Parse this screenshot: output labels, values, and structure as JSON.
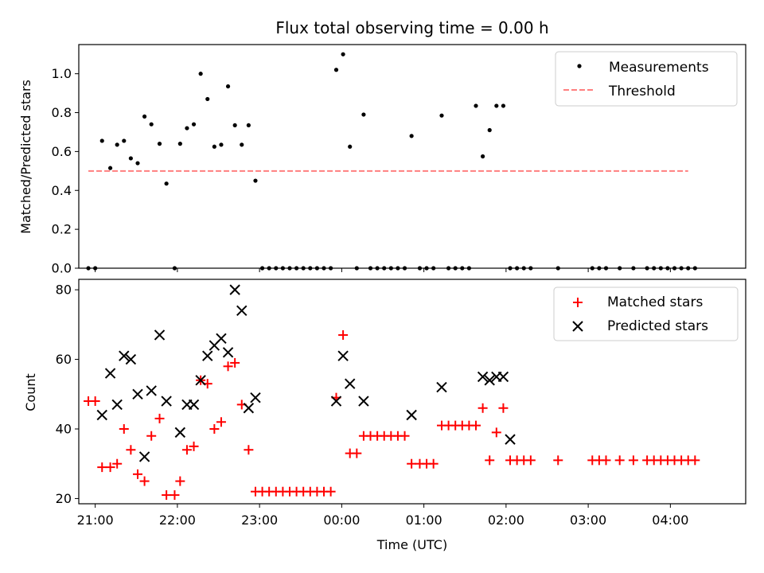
{
  "chart_data": [
    {
      "type": "scatter",
      "title": "Flux total observing time = 0.00 h",
      "xlabel": "",
      "ylabel": "Matched/Predicted stars",
      "xlim": [
        "20:48",
        "04:55"
      ],
      "ylim": [
        0,
        1.15
      ],
      "yticks": [
        "0.0",
        "0.2",
        "0.4",
        "0.6",
        "0.8",
        "1.0"
      ],
      "ytick_values": [
        0,
        0.2,
        0.4,
        0.6,
        0.8,
        1.0
      ],
      "legend_position": "top-right",
      "series": [
        {
          "name": "Measurements",
          "marker": "dot",
          "color": "#000000",
          "x": [
            "20:55",
            "21:00",
            "21:05",
            "21:11",
            "21:16",
            "21:21",
            "21:26",
            "21:31",
            "21:36",
            "21:41",
            "21:47",
            "21:52",
            "21:58",
            "22:02",
            "22:07",
            "22:12",
            "22:17",
            "22:22",
            "22:27",
            "22:32",
            "22:37",
            "22:42",
            "22:47",
            "22:52",
            "22:57",
            "23:02",
            "23:07",
            "23:12",
            "23:17",
            "23:22",
            "23:27",
            "23:32",
            "23:37",
            "23:42",
            "23:47",
            "23:52",
            "23:56",
            "00:01",
            "00:06",
            "00:11",
            "00:16",
            "00:21",
            "00:26",
            "00:31",
            "00:36",
            "00:41",
            "00:46",
            "00:51",
            "00:57",
            "01:02",
            "01:07",
            "01:13",
            "01:18",
            "01:23",
            "01:28",
            "01:33",
            "01:38",
            "01:43",
            "01:48",
            "01:53",
            "01:58",
            "02:03",
            "02:08",
            "02:13",
            "02:18",
            "02:38",
            "03:03",
            "03:08",
            "03:13",
            "03:23",
            "03:33",
            "03:43",
            "03:48",
            "03:53",
            "03:58",
            "04:03",
            "04:08",
            "04:13",
            "04:18"
          ],
          "y": [
            0,
            0,
            0.655,
            0.515,
            0.635,
            0.655,
            0.565,
            0.54,
            0.78,
            0.74,
            0.64,
            0.435,
            0,
            0.64,
            0.72,
            0.74,
            1.0,
            0.87,
            0.625,
            0.635,
            0.935,
            0.735,
            0.635,
            0.735,
            0.45,
            0,
            0,
            0,
            0,
            0,
            0,
            0,
            0,
            0,
            0,
            0,
            1.02,
            1.1,
            0.625,
            0,
            0.79,
            0,
            0,
            0,
            0,
            0,
            0,
            0.68,
            0,
            0,
            0,
            0.785,
            0,
            0,
            0,
            0,
            0.835,
            0.575,
            0.71,
            0.835,
            0.835,
            0,
            0,
            0,
            0,
            0,
            0,
            0,
            0,
            0,
            0,
            0,
            0,
            0,
            0,
            0,
            0,
            0,
            0
          ]
        },
        {
          "name": "Threshold",
          "line_style": "dashed",
          "color": "#ff7f7f",
          "x": [
            "20:55",
            "04:13"
          ],
          "y": [
            0.5,
            0.5
          ]
        }
      ]
    },
    {
      "type": "scatter",
      "title": "",
      "xlabel": "Time (UTC)",
      "ylabel": "Count",
      "xlim": [
        "20:48",
        "04:55"
      ],
      "ylim": [
        18.5,
        83
      ],
      "xticks": [
        "21:00",
        "22:00",
        "23:00",
        "00:00",
        "01:00",
        "02:00",
        "03:00",
        "04:00"
      ],
      "yticks": [
        "20",
        "40",
        "60",
        "80"
      ],
      "ytick_values": [
        20,
        40,
        60,
        80
      ],
      "legend_position": "top-right",
      "series": [
        {
          "name": "Matched stars",
          "marker": "plus",
          "color": "#ff0000",
          "x": [
            "20:55",
            "21:00",
            "21:05",
            "21:11",
            "21:16",
            "21:21",
            "21:26",
            "21:31",
            "21:36",
            "21:41",
            "21:47",
            "21:52",
            "21:58",
            "22:02",
            "22:07",
            "22:12",
            "22:17",
            "22:22",
            "22:27",
            "22:32",
            "22:37",
            "22:42",
            "22:47",
            "22:52",
            "22:57",
            "23:02",
            "23:07",
            "23:12",
            "23:17",
            "23:22",
            "23:27",
            "23:32",
            "23:37",
            "23:42",
            "23:47",
            "23:52",
            "23:56",
            "00:01",
            "00:06",
            "00:11",
            "00:16",
            "00:21",
            "00:26",
            "00:31",
            "00:36",
            "00:41",
            "00:46",
            "00:51",
            "00:57",
            "01:02",
            "01:07",
            "01:13",
            "01:18",
            "01:23",
            "01:28",
            "01:33",
            "01:38",
            "01:43",
            "01:48",
            "01:53",
            "01:58",
            "02:03",
            "02:08",
            "02:13",
            "02:18",
            "02:38",
            "03:03",
            "03:08",
            "03:13",
            "03:23",
            "03:33",
            "03:43",
            "03:48",
            "03:53",
            "03:58",
            "04:03",
            "04:08",
            "04:13",
            "04:18"
          ],
          "y": [
            48,
            48,
            29,
            29,
            30,
            40,
            34,
            27,
            25,
            38,
            43,
            21,
            21,
            25,
            34,
            35,
            54,
            53,
            40,
            42,
            58,
            59,
            47,
            34,
            22,
            22,
            22,
            22,
            22,
            22,
            22,
            22,
            22,
            22,
            22,
            22,
            49,
            67,
            33,
            33,
            38,
            38,
            38,
            38,
            38,
            38,
            38,
            30,
            30,
            30,
            30,
            41,
            41,
            41,
            41,
            41,
            41,
            46,
            31,
            39,
            46,
            31,
            31,
            31,
            31,
            31,
            31,
            31,
            31,
            31,
            31,
            31,
            31,
            31,
            31,
            31,
            31,
            31,
            31
          ]
        },
        {
          "name": "Predicted stars",
          "marker": "x",
          "color": "#000000",
          "x": [
            "21:05",
            "21:11",
            "21:16",
            "21:21",
            "21:26",
            "21:31",
            "21:36",
            "21:41",
            "21:47",
            "21:52",
            "22:02",
            "22:07",
            "22:12",
            "22:17",
            "22:22",
            "22:27",
            "22:32",
            "22:37",
            "22:42",
            "22:47",
            "22:52",
            "22:57",
            "23:56",
            "00:01",
            "00:06",
            "00:16",
            "00:51",
            "01:13",
            "01:43",
            "01:48",
            "01:53",
            "01:58",
            "02:03"
          ],
          "y": [
            44,
            56,
            47,
            61,
            60,
            50,
            32,
            51,
            67,
            48,
            39,
            47,
            47,
            54,
            61,
            64,
            66,
            62,
            80,
            74,
            46,
            49,
            48,
            61,
            53,
            48,
            44,
            52,
            55,
            54,
            55,
            55,
            37
          ]
        }
      ]
    }
  ]
}
